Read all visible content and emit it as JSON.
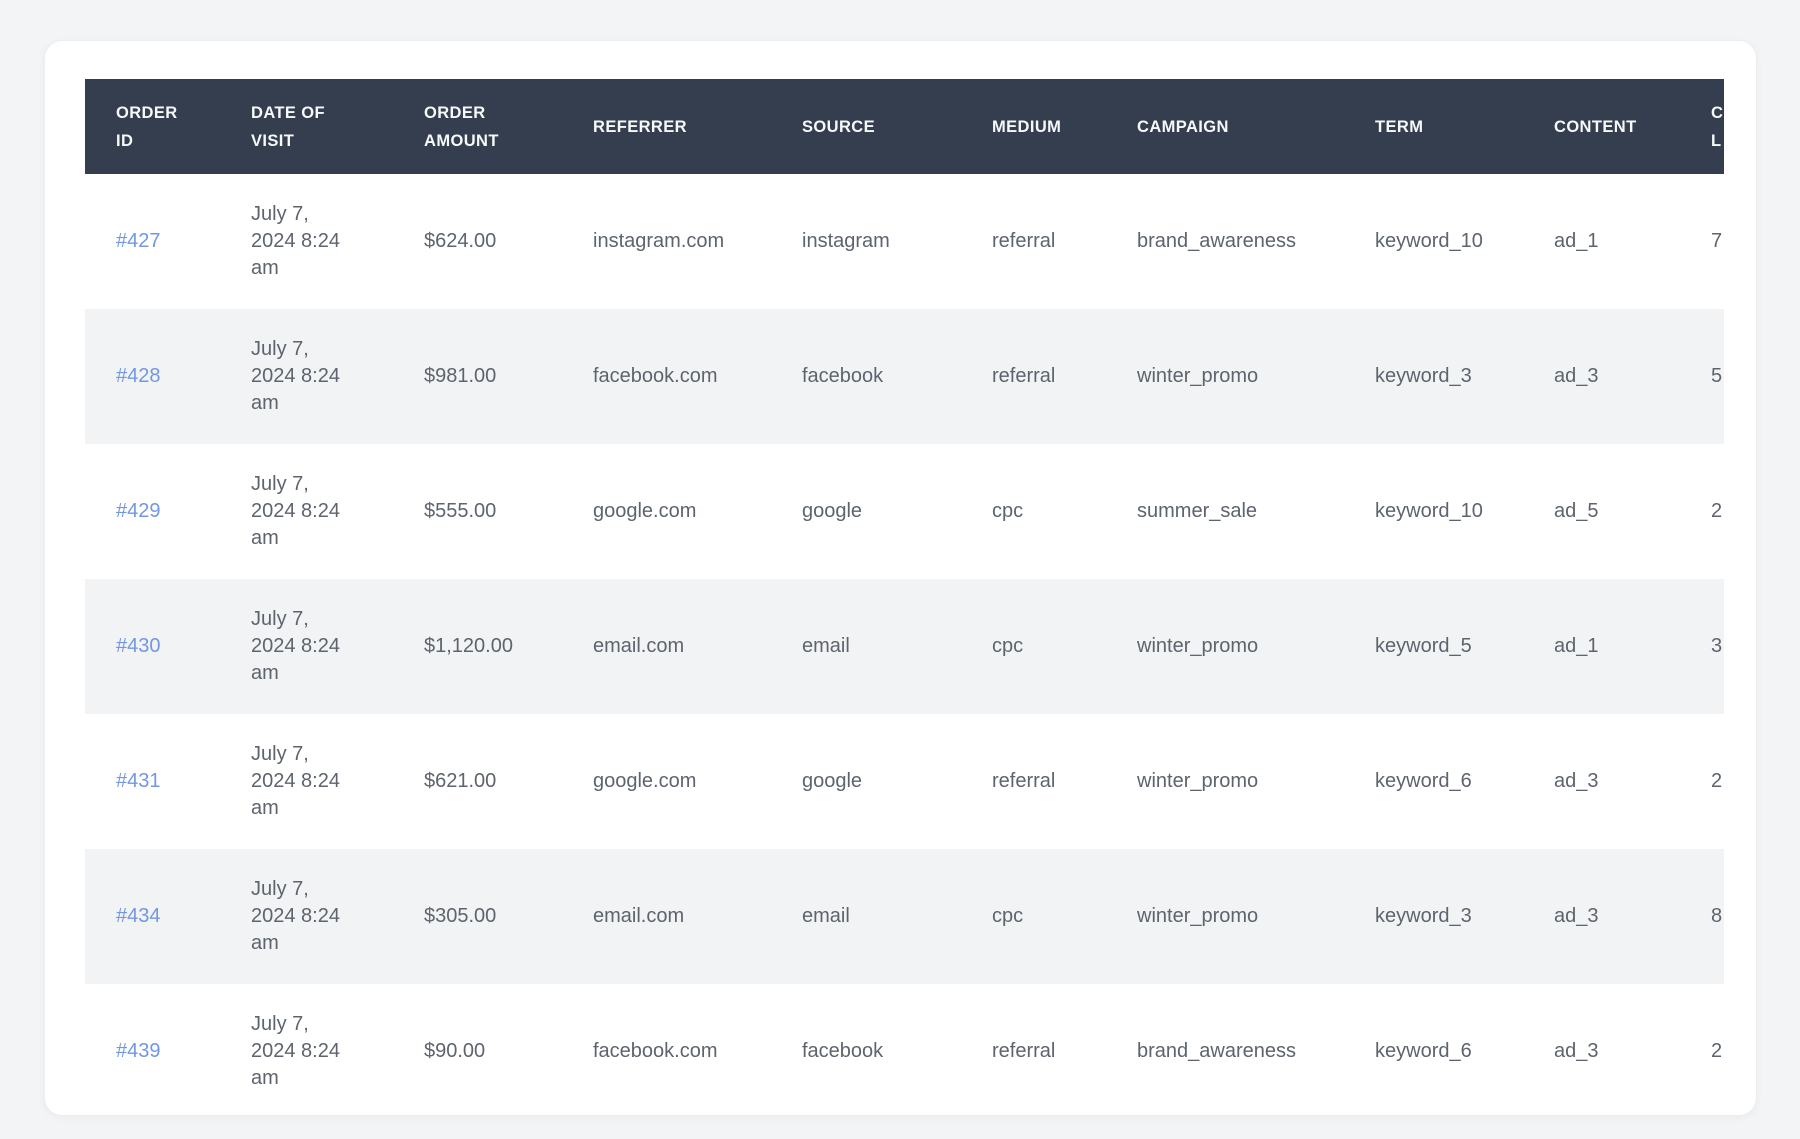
{
  "colors": {
    "page-bg": "#f3f4f6",
    "card-bg": "#ffffff",
    "card-border": "#ebedf1",
    "header-bg": "#343e4e",
    "header-text": "#f7f8f9",
    "zebra": "#f2f3f4",
    "cell-text": "#5d646e",
    "link": "#7297e4"
  },
  "table": {
    "columns": [
      {
        "id": "order_id",
        "label": "ORDER ID"
      },
      {
        "id": "date_of_visit",
        "label": "DATE OF VISIT"
      },
      {
        "id": "order_amount",
        "label": "ORDER AMOUNT"
      },
      {
        "id": "referrer",
        "label": "REFERRER"
      },
      {
        "id": "source",
        "label": "SOURCE"
      },
      {
        "id": "medium",
        "label": "MEDIUM"
      },
      {
        "id": "campaign",
        "label": "CAMPAIGN"
      },
      {
        "id": "term",
        "label": "TERM"
      },
      {
        "id": "content",
        "label": "CONTENT"
      },
      {
        "id": "clipped_col",
        "label": "C L",
        "label_lines": [
          "C",
          "L"
        ]
      }
    ],
    "rows": [
      {
        "order_id": "#427",
        "date_of_visit": "July 7, 2024 8:24 am",
        "order_amount": "$624.00",
        "referrer": "instagram.com",
        "source": "instagram",
        "medium": "referral",
        "campaign": "brand_awareness",
        "term": "keyword_10",
        "content": "ad_1",
        "clipped_col": "7"
      },
      {
        "order_id": "#428",
        "date_of_visit": "July 7, 2024 8:24 am",
        "order_amount": "$981.00",
        "referrer": "facebook.com",
        "source": "facebook",
        "medium": "referral",
        "campaign": "winter_promo",
        "term": "keyword_3",
        "content": "ad_3",
        "clipped_col": "5"
      },
      {
        "order_id": "#429",
        "date_of_visit": "July 7, 2024 8:24 am",
        "order_amount": "$555.00",
        "referrer": "google.com",
        "source": "google",
        "medium": "cpc",
        "campaign": "summer_sale",
        "term": "keyword_10",
        "content": "ad_5",
        "clipped_col": "2"
      },
      {
        "order_id": "#430",
        "date_of_visit": "July 7, 2024 8:24 am",
        "order_amount": "$1,120.00",
        "referrer": "email.com",
        "source": "email",
        "medium": "cpc",
        "campaign": "winter_promo",
        "term": "keyword_5",
        "content": "ad_1",
        "clipped_col": "3"
      },
      {
        "order_id": "#431",
        "date_of_visit": "July 7, 2024 8:24 am",
        "order_amount": "$621.00",
        "referrer": "google.com",
        "source": "google",
        "medium": "referral",
        "campaign": "winter_promo",
        "term": "keyword_6",
        "content": "ad_3",
        "clipped_col": "2"
      },
      {
        "order_id": "#434",
        "date_of_visit": "July 7, 2024 8:24 am",
        "order_amount": "$305.00",
        "referrer": "email.com",
        "source": "email",
        "medium": "cpc",
        "campaign": "winter_promo",
        "term": "keyword_3",
        "content": "ad_3",
        "clipped_col": "8"
      },
      {
        "order_id": "#439",
        "date_of_visit": "July 7, 2024 8:24 am",
        "order_amount": "$90.00",
        "referrer": "facebook.com",
        "source": "facebook",
        "medium": "referral",
        "campaign": "brand_awareness",
        "term": "keyword_6",
        "content": "ad_3",
        "clipped_col": "2"
      }
    ]
  }
}
